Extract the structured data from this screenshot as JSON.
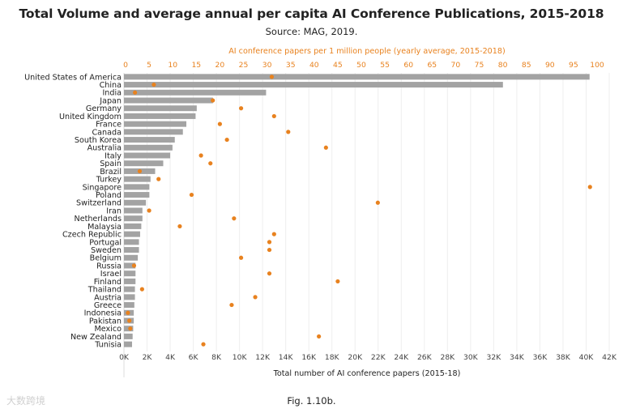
{
  "title": "Total Volume and average annual per capita AI Conference Publications, 2015-2018",
  "subtitle": "Source: MAG, 2019.",
  "caption": "Fig. 1.10b.",
  "watermark": "大数跨境",
  "colors": {
    "bar": "#a3a3a3",
    "dot": "#e8821f",
    "grid": "#eeeeee"
  },
  "chart_data": {
    "type": "bar",
    "orientation": "horizontal",
    "categories": [
      "United States of America",
      "China",
      "India",
      "Japan",
      "Germany",
      "United Kingdom",
      "France",
      "Canada",
      "South Korea",
      "Australia",
      "Italy",
      "Spain",
      "Brazil",
      "Turkey",
      "Singapore",
      "Poland",
      "Switzerland",
      "Iran",
      "Netherlands",
      "Malaysia",
      "Czech Republic",
      "Portugal",
      "Sweden",
      "Belgium",
      "Russia",
      "Israel",
      "Finland",
      "Thailand",
      "Austria",
      "Greece",
      "Indonesia",
      "Pakistan",
      "Mexico",
      "New Zealand",
      "Tunisia"
    ],
    "series": [
      {
        "name": "Total number of AI conference papers (2015-18)",
        "axis": "bottom",
        "values": [
          40300,
          32800,
          12300,
          7700,
          6300,
          6200,
          5400,
          5100,
          4400,
          4200,
          4000,
          3400,
          2700,
          2300,
          2200,
          2200,
          1900,
          1600,
          1600,
          1500,
          1400,
          1300,
          1300,
          1200,
          1000,
          1000,
          1000,
          950,
          950,
          900,
          850,
          850,
          800,
          750,
          700
        ]
      },
      {
        "name": "AI conference papers per 1 million people (yearly average, 2015-2018)",
        "axis": "top",
        "values": [
          31,
          6,
          2,
          18.5,
          24.5,
          31.5,
          20,
          34.5,
          21.5,
          42.5,
          16,
          18,
          3,
          7,
          98.5,
          14,
          53.5,
          5,
          23,
          11.5,
          31.5,
          30.5,
          30.5,
          24.5,
          1.8,
          30.5,
          45,
          3.5,
          27.5,
          22.5,
          0.5,
          0.8,
          1,
          41,
          16.5
        ]
      }
    ],
    "xlabel": "Total number of AI conference papers (2015-18)",
    "x_ticks": [
      "0K",
      "2K",
      "4K",
      "6K",
      "8K",
      "10K",
      "12K",
      "14K",
      "16K",
      "18K",
      "20K",
      "22K",
      "24K",
      "26K",
      "28K",
      "30K",
      "32K",
      "34K",
      "36K",
      "38K",
      "40K",
      "42K"
    ],
    "xlim": [
      0,
      42000
    ],
    "x2label": "AI conference papers per 1 million people (yearly average, 2015-2018)",
    "x2_ticks": [
      "0",
      "5",
      "10",
      "15",
      "20",
      "25",
      "30",
      "35",
      "40",
      "45",
      "50",
      "55",
      "60",
      "65",
      "70",
      "75",
      "80",
      "85",
      "90",
      "95",
      "100"
    ],
    "x2lim": [
      0,
      100
    ],
    "grid": true
  }
}
